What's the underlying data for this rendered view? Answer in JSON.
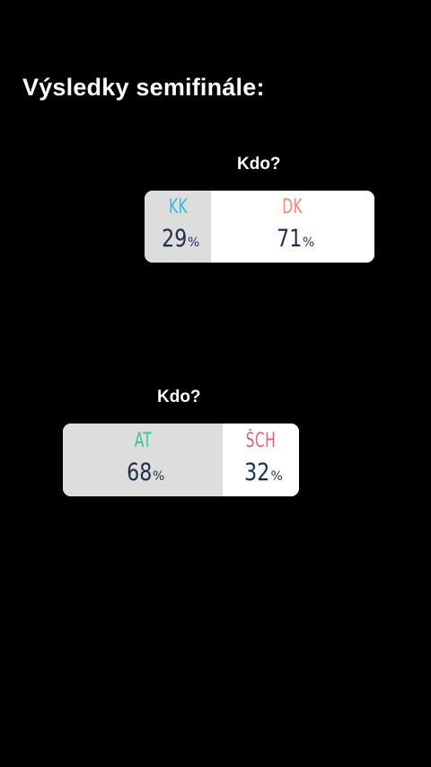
{
  "heading": "Výsledky semifinále:",
  "polls": [
    {
      "question": "Kdo?",
      "options": [
        {
          "label": "KK",
          "value": "29",
          "percent_sign": "%",
          "label_color": "#3fb3d8"
        },
        {
          "label": "DK",
          "value": "71",
          "percent_sign": "%",
          "label_color": "#ec8877"
        }
      ]
    },
    {
      "question": "Kdo?",
      "options": [
        {
          "label": "AT",
          "value": "68",
          "percent_sign": "%",
          "label_color": "#3fbf9e"
        },
        {
          "label": "ŠCH",
          "value": "32",
          "percent_sign": "%",
          "label_color": "#e35e86"
        }
      ]
    }
  ]
}
